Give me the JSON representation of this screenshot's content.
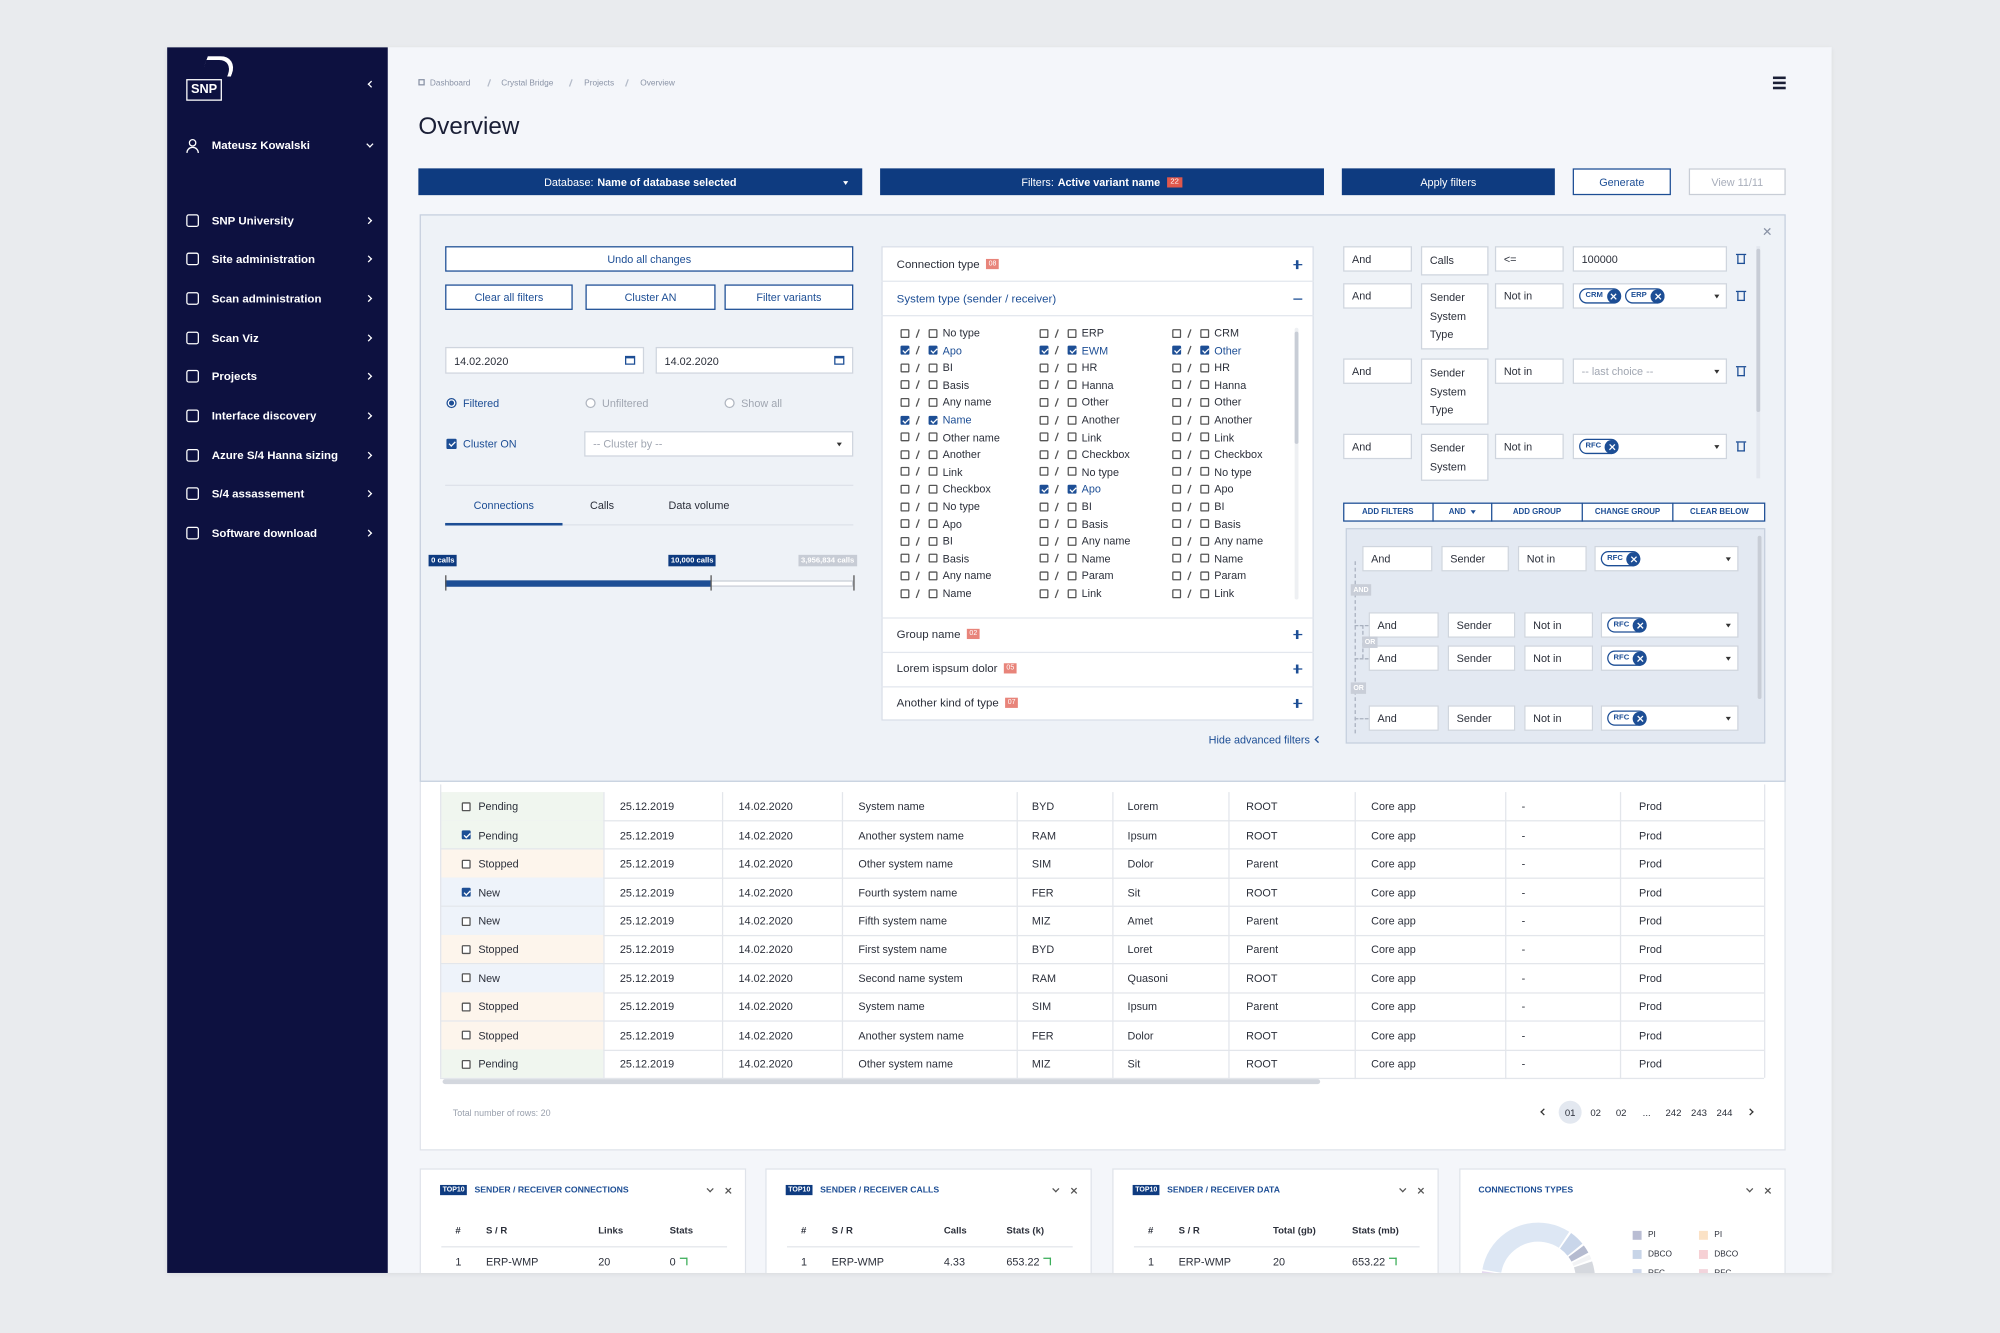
{
  "sidebar": {
    "logo": "SNP",
    "user": "Mateusz Kowalski",
    "menu": [
      "SNP University",
      "Site administration",
      "Scan administration",
      "Scan Viz",
      "Projects",
      "Interface discovery",
      "Azure S/4 Hanna sizing",
      "S/4 assassement",
      "Software download"
    ]
  },
  "breadcrumb": [
    "Dashboard",
    "Crystal Bridge",
    "Projects",
    "Overview"
  ],
  "page_title": "Overview",
  "toolbar": {
    "database": {
      "label": "Database:",
      "value": "Name of database selected"
    },
    "filters": {
      "label": "Filters:",
      "value": "Active variant name",
      "count": "22"
    },
    "apply": "Apply filters",
    "generate": "Generate",
    "view": "View 11/11"
  },
  "filters": {
    "left": {
      "undo": "Undo all changes",
      "buttons": [
        "Clear all filters",
        "Cluster AN",
        "Filter variants"
      ],
      "dates": [
        "14.02.2020",
        "14.02.2020"
      ],
      "radios": [
        "Filtered",
        "Unfiltered",
        "Show all"
      ],
      "radio_selected": 0,
      "cluster": {
        "label": "Cluster ON",
        "checked": true
      },
      "cluster_by": "-- Cluster by --",
      "tabs": [
        "Connections",
        "Calls",
        "Data volume"
      ],
      "slider": [
        "0 calls",
        "10,000 calls",
        "3,956,834 calls"
      ]
    },
    "middle": {
      "sections_top": [
        {
          "title": "Connection type",
          "count": "08"
        },
        {
          "title": "System type (sender / receiver)",
          "expanded": true
        }
      ],
      "columns": [
        [
          {
            "label": "No type",
            "checked": false
          },
          {
            "label": "Apo",
            "checked": true
          },
          {
            "label": "BI",
            "checked": false
          },
          {
            "label": "Basis",
            "checked": false
          },
          {
            "label": "Any name",
            "checked": false
          },
          {
            "label": "Name",
            "checked": true
          },
          {
            "label": "Other name",
            "checked": false
          },
          {
            "label": "Another",
            "checked": false
          },
          {
            "label": "Link",
            "checked": false
          },
          {
            "label": "Checkbox",
            "checked": false
          },
          {
            "label": "No type",
            "checked": false
          },
          {
            "label": "Apo",
            "checked": false
          },
          {
            "label": "BI",
            "checked": false
          },
          {
            "label": "Basis",
            "checked": false
          },
          {
            "label": "Any name",
            "checked": false
          },
          {
            "label": "Name",
            "checked": false
          }
        ],
        [
          {
            "label": "ERP",
            "checked": false
          },
          {
            "label": "EWM",
            "checked": true
          },
          {
            "label": "HR",
            "checked": false
          },
          {
            "label": "Hanna",
            "checked": false
          },
          {
            "label": "Other",
            "checked": false
          },
          {
            "label": "Another",
            "checked": false
          },
          {
            "label": "Link",
            "checked": false
          },
          {
            "label": "Checkbox",
            "checked": false
          },
          {
            "label": "No type",
            "checked": false
          },
          {
            "label": "Apo",
            "checked": true
          },
          {
            "label": "BI",
            "checked": false
          },
          {
            "label": "Basis",
            "checked": false
          },
          {
            "label": "Any name",
            "checked": false
          },
          {
            "label": "Name",
            "checked": false
          },
          {
            "label": "Param",
            "checked": false
          },
          {
            "label": "Link",
            "checked": false
          }
        ],
        [
          {
            "label": "CRM",
            "checked": false
          },
          {
            "label": "Other",
            "checked": true
          },
          {
            "label": "HR",
            "checked": false
          },
          {
            "label": "Hanna",
            "checked": false
          },
          {
            "label": "Other",
            "checked": false
          },
          {
            "label": "Another",
            "checked": false
          },
          {
            "label": "Link",
            "checked": false
          },
          {
            "label": "Checkbox",
            "checked": false
          },
          {
            "label": "No type",
            "checked": false
          },
          {
            "label": "Apo",
            "checked": false
          },
          {
            "label": "BI",
            "checked": false
          },
          {
            "label": "Basis",
            "checked": false
          },
          {
            "label": "Any name",
            "checked": false
          },
          {
            "label": "Name",
            "checked": false
          },
          {
            "label": "Param",
            "checked": false
          },
          {
            "label": "Link",
            "checked": false
          }
        ]
      ],
      "sections_bottom": [
        {
          "title": "Group name",
          "count": "02"
        },
        {
          "title": "Lorem ispsum dolor",
          "count": "05"
        },
        {
          "title": "Another kind of type",
          "count": "07"
        }
      ],
      "hide": "Hide advanced filters"
    },
    "right": {
      "rules": [
        {
          "join": "And",
          "field": "Calls",
          "op": "<=",
          "value": "100000"
        },
        {
          "join": "And",
          "field": "Sender System Type",
          "op": "Not in",
          "tags": [
            "CRM",
            "ERP"
          ]
        },
        {
          "join": "And",
          "field": "Sender System Type",
          "op": "Not in",
          "placeholder": "-- last choice --"
        },
        {
          "join": "And",
          "field": "Sender System",
          "op": "Not in",
          "tags": [
            "RFC"
          ]
        }
      ],
      "actions": [
        "ADD FILTERS",
        "AND",
        "ADD GROUP",
        "CHANGE GROUP",
        "CLEAR BELOW"
      ],
      "group": {
        "rows": [
          {
            "join": "And",
            "field": "Sender",
            "op": "Not in",
            "tags": [
              "RFC"
            ]
          },
          {
            "join": "And",
            "field": "Sender",
            "op": "Not in",
            "tags": [
              "RFC"
            ]
          },
          {
            "join": "And",
            "field": "Sender",
            "op": "Not in",
            "tags": [
              "RFC"
            ]
          },
          {
            "join": "And",
            "field": "Sender",
            "op": "Not in",
            "tags": [
              "RFC"
            ]
          }
        ],
        "connectors": [
          "AND",
          "OR",
          "OR"
        ]
      }
    }
  },
  "table": {
    "rows": [
      {
        "checked": false,
        "tint": "#f0f6ef",
        "cells": [
          "Pending",
          "25.12.2019",
          "14.02.2020",
          "System name",
          "BYD",
          "Lorem",
          "ROOT",
          "Core app",
          "-",
          "Prod"
        ]
      },
      {
        "checked": true,
        "tint": "#f0f6ef",
        "cells": [
          "Pending",
          "25.12.2019",
          "14.02.2020",
          "Another system name",
          "RAM",
          "Ipsum",
          "ROOT",
          "Core app",
          "-",
          "Prod"
        ]
      },
      {
        "checked": false,
        "tint": "#fdf5ec",
        "cells": [
          "Stopped",
          "25.12.2019",
          "14.02.2020",
          "Other system name",
          "SIM",
          "Dolor",
          "Parent",
          "Core app",
          "-",
          "Prod"
        ]
      },
      {
        "checked": true,
        "tint": "#eef3fa",
        "cells": [
          "New",
          "25.12.2019",
          "14.02.2020",
          "Fourth system name",
          "FER",
          "Sit",
          "ROOT",
          "Core app",
          "-",
          "Prod"
        ]
      },
      {
        "checked": false,
        "tint": "#eef3fa",
        "cells": [
          "New",
          "25.12.2019",
          "14.02.2020",
          "Fifth system name",
          "MIZ",
          "Amet",
          "Parent",
          "Core app",
          "-",
          "Prod"
        ]
      },
      {
        "checked": false,
        "tint": "#fdf5ec",
        "cells": [
          "Stopped",
          "25.12.2019",
          "14.02.2020",
          "First system name",
          "BYD",
          "Loret",
          "Parent",
          "Core app",
          "-",
          "Prod"
        ]
      },
      {
        "checked": false,
        "tint": "#eef3fa",
        "cells": [
          "New",
          "25.12.2019",
          "14.02.2020",
          "Second name system",
          "RAM",
          "Quasoni",
          "ROOT",
          "Core app",
          "-",
          "Prod"
        ]
      },
      {
        "checked": false,
        "tint": "#fdf5ec",
        "cells": [
          "Stopped",
          "25.12.2019",
          "14.02.2020",
          "System name",
          "SIM",
          "Ipsum",
          "Parent",
          "Core app",
          "-",
          "Prod"
        ]
      },
      {
        "checked": false,
        "tint": "#fdf5ec",
        "cells": [
          "Stopped",
          "25.12.2019",
          "14.02.2020",
          "Another system name",
          "FER",
          "Dolor",
          "ROOT",
          "Core app",
          "-",
          "Prod"
        ]
      },
      {
        "checked": false,
        "tint": "#f0f6ef",
        "cells": [
          "Pending",
          "25.12.2019",
          "14.02.2020",
          "Other system name",
          "MIZ",
          "Sit",
          "ROOT",
          "Core app",
          "-",
          "Prod"
        ]
      }
    ],
    "total": "Total number of rows: 20",
    "pages": [
      "01",
      "02",
      "02",
      "...",
      "242",
      "243",
      "244"
    ]
  },
  "cards": [
    {
      "badge": "TOP10",
      "title": "SENDER / RECEIVER CONNECTIONS",
      "headers": [
        "#",
        "S / R",
        "Links",
        "Stats"
      ],
      "rows": [
        [
          "1",
          "ERP-WMP",
          "20",
          "0"
        ]
      ]
    },
    {
      "badge": "TOP10",
      "title": "SENDER / RECEIVER CALLS",
      "headers": [
        "#",
        "S / R",
        "Calls",
        "Stats (k)"
      ],
      "rows": [
        [
          "1",
          "ERP-WMP",
          "4.33",
          "653.22"
        ]
      ]
    },
    {
      "badge": "TOP10",
      "title": "SENDER / RECEIVER DATA",
      "headers": [
        "#",
        "S / R",
        "Total (gb)",
        "Stats (mb)"
      ],
      "rows": [
        [
          "1",
          "ERP-WMP",
          "20",
          "653.22"
        ]
      ]
    },
    {
      "title": "CONNECTIONS TYPES",
      "legend": [
        {
          "label": "PI",
          "color": "#b9bdd3"
        },
        {
          "label": "PI",
          "color": "#fbe2c6"
        },
        {
          "label": "DBCO",
          "color": "#c8d5e8"
        },
        {
          "label": "DBCO",
          "color": "#f6d0d4"
        },
        {
          "label": "RFC",
          "color": "#cdd7ea"
        },
        {
          "label": "RFC",
          "color": "#f2d4dc"
        }
      ]
    }
  ]
}
